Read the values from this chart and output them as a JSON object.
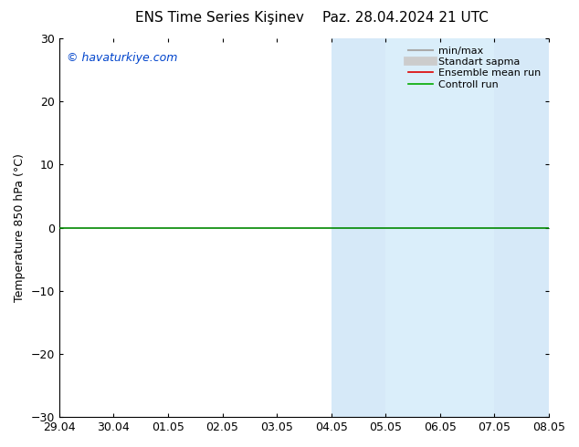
{
  "title_left": "ENS Time Series Kişinev",
  "title_right": "Paz. 28.04.2024 21 UTC",
  "ylabel": "Temperature 850 hPa (°C)",
  "ylim": [
    -30,
    30
  ],
  "yticks": [
    -30,
    -20,
    -10,
    0,
    10,
    20,
    30
  ],
  "xlabels": [
    "29.04",
    "30.04",
    "01.05",
    "02.05",
    "03.05",
    "04.05",
    "05.05",
    "06.05",
    "07.05",
    "08.05"
  ],
  "watermark": "© havaturkiye.com",
  "legend_items": [
    {
      "label": "min/max",
      "color": "#aaaaaa",
      "lw": 1.5,
      "ls": "-",
      "type": "line"
    },
    {
      "label": "Standart sapma",
      "color": "#cccccc",
      "lw": 7,
      "ls": "-",
      "type": "line"
    },
    {
      "label": "Ensemble mean run",
      "color": "#dd0000",
      "lw": 1.2,
      "ls": "-",
      "type": "line"
    },
    {
      "label": "Controll run",
      "color": "#00aa00",
      "lw": 1.2,
      "ls": "-",
      "type": "line"
    }
  ],
  "shaded_regions": [
    {
      "xstart": 5,
      "xend": 6,
      "color": "#d6e9f8"
    },
    {
      "xstart": 6,
      "xend": 7,
      "color": "#daeefa"
    },
    {
      "xstart": 7,
      "xend": 8,
      "color": "#daeefa"
    },
    {
      "xstart": 8,
      "xend": 9,
      "color": "#d6e9f8"
    }
  ],
  "green_line_y": 0,
  "hline_color": "#008800",
  "hline_lw": 1.2,
  "figsize": [
    6.34,
    4.9
  ],
  "dpi": 100,
  "bg_color": "#ffffff",
  "title_fontsize": 11,
  "ylabel_fontsize": 9,
  "tick_fontsize": 9,
  "watermark_color": "#0044cc",
  "watermark_fontsize": 9
}
